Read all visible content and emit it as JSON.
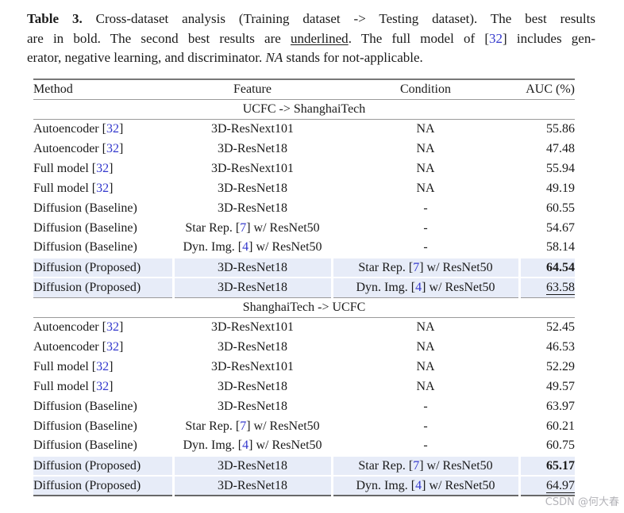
{
  "colors": {
    "citation_blue": "#3338cc",
    "highlight_row": "#e7ecf8",
    "rule_light": "#9a9a9a",
    "rule_heavy": "#6e6e6e",
    "text": "#1a1a1a",
    "watermark_gray": "#b3b3b8",
    "background": "#ffffff"
  },
  "caption": {
    "lines": [
      [
        {
          "t": "Table 3.",
          "s": "bold"
        },
        {
          "t": " Cross-dataset analysis (Training dataset -> Testing dataset). The best results",
          "s": "normal"
        }
      ],
      [
        {
          "t": "are in bold. The second best results are ",
          "s": "normal"
        },
        {
          "t": "underlined",
          "s": "underline"
        },
        {
          "t": ". The full model of [",
          "s": "normal"
        },
        {
          "t": "32",
          "s": "cite"
        },
        {
          "t": "] includes gen-",
          "s": "normal"
        }
      ],
      [
        {
          "t": "erator, negative learning, and discriminator. ",
          "s": "normal"
        },
        {
          "t": "NA",
          "s": "italic"
        },
        {
          "t": " stands for not-applicable.",
          "s": "normal"
        }
      ]
    ]
  },
  "table": {
    "headers": [
      "Method",
      "Feature",
      "Condition",
      "AUC (%)"
    ],
    "sections": [
      {
        "title": "UCFC -> ShanghaiTech",
        "rows": [
          {
            "method": "Autoencoder [32]",
            "feature": "3D-ResNext101",
            "condition": "NA",
            "auc": "55.86",
            "style": "normal",
            "highlight": false
          },
          {
            "method": "Autoencoder [32]",
            "feature": "3D-ResNet18",
            "condition": "NA",
            "auc": "47.48",
            "style": "normal",
            "highlight": false
          },
          {
            "method": "Full model [32]",
            "feature": "3D-ResNext101",
            "condition": "NA",
            "auc": "55.94",
            "style": "normal",
            "highlight": false
          },
          {
            "method": "Full model [32]",
            "feature": "3D-ResNet18",
            "condition": "NA",
            "auc": "49.19",
            "style": "normal",
            "highlight": false
          },
          {
            "method": "Diffusion (Baseline)",
            "feature": "3D-ResNet18",
            "condition": "-",
            "auc": "60.55",
            "style": "normal",
            "highlight": false
          },
          {
            "method": "Diffusion (Baseline)",
            "feature": "Star Rep. [7] w/ ResNet50",
            "condition": "-",
            "auc": "54.67",
            "style": "normal",
            "highlight": false
          },
          {
            "method": "Diffusion (Baseline)",
            "feature": "Dyn. Img. [4] w/ ResNet50",
            "condition": "-",
            "auc": "58.14",
            "style": "normal",
            "highlight": false
          },
          {
            "method": "Diffusion (Proposed)",
            "feature": "3D-ResNet18",
            "condition": "Star Rep. [7] w/ ResNet50",
            "auc": "64.54",
            "style": "bold",
            "highlight": true
          },
          {
            "method": "Diffusion (Proposed)",
            "feature": "3D-ResNet18",
            "condition": "Dyn. Img. [4] w/ ResNet50",
            "auc": "63.58",
            "style": "underline",
            "highlight": true
          }
        ]
      },
      {
        "title": "ShanghaiTech -> UCFC",
        "rows": [
          {
            "method": "Autoencoder [32]",
            "feature": "3D-ResNext101",
            "condition": "NA",
            "auc": "52.45",
            "style": "normal",
            "highlight": false
          },
          {
            "method": "Autoencoder [32]",
            "feature": "3D-ResNet18",
            "condition": "NA",
            "auc": "46.53",
            "style": "normal",
            "highlight": false
          },
          {
            "method": "Full model [32]",
            "feature": "3D-ResNext101",
            "condition": "NA",
            "auc": "52.29",
            "style": "normal",
            "highlight": false
          },
          {
            "method": "Full model [32]",
            "feature": "3D-ResNet18",
            "condition": "NA",
            "auc": "49.57",
            "style": "normal",
            "highlight": false
          },
          {
            "method": "Diffusion (Baseline)",
            "feature": "3D-ResNet18",
            "condition": "-",
            "auc": "63.97",
            "style": "normal",
            "highlight": false
          },
          {
            "method": "Diffusion (Baseline)",
            "feature": "Star Rep. [7] w/ ResNet50",
            "condition": "-",
            "auc": "60.21",
            "style": "normal",
            "highlight": false
          },
          {
            "method": "Diffusion (Baseline)",
            "feature": "Dyn. Img. [4] w/ ResNet50",
            "condition": "-",
            "auc": "60.75",
            "style": "normal",
            "highlight": false
          },
          {
            "method": "Diffusion (Proposed)",
            "feature": "3D-ResNet18",
            "condition": "Star Rep. [7] w/ ResNet50",
            "auc": "65.17",
            "style": "bold",
            "highlight": true
          },
          {
            "method": "Diffusion (Proposed)",
            "feature": "3D-ResNet18",
            "condition": "Dyn. Img. [4] w/ ResNet50",
            "auc": "64.97",
            "style": "underline",
            "highlight": true
          }
        ]
      }
    ]
  },
  "watermark": {
    "text": "CSDN @何大春"
  }
}
